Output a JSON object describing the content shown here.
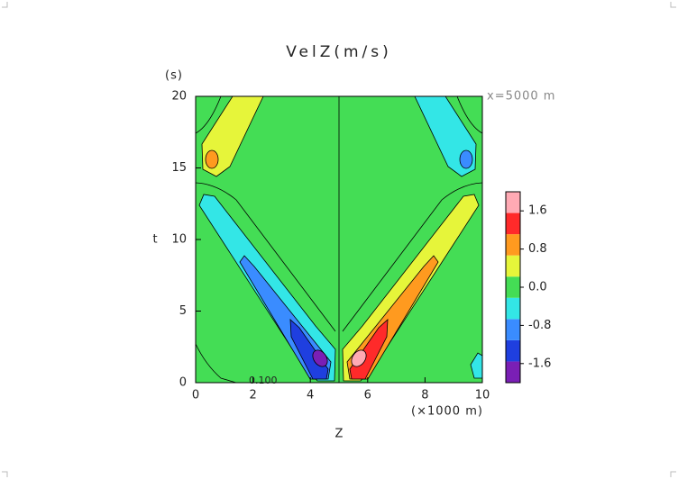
{
  "chart_data": {
    "type": "contour",
    "title": "VelZ(m/s)",
    "x_label": "Z",
    "x_unit": "(×1000 m)",
    "y_label": "t",
    "y_unit": "(s)",
    "annotation": "x=5000 m",
    "contour_label": "0.100",
    "xlim": [
      0,
      10
    ],
    "xticks": [
      0,
      2,
      4,
      6,
      8,
      10
    ],
    "ylim": [
      0,
      20
    ],
    "yticks": [
      0,
      5,
      10,
      15,
      20
    ],
    "colorbar": {
      "clim": [
        -2.0,
        2.0
      ],
      "ticks": [
        -1.6,
        -0.8,
        {
          "value": 0,
          "label": "0.0"
        },
        0.8,
        1.6
      ],
      "colors": [
        "#7a1fb5",
        "#1f3fdf",
        "#3a8cff",
        "#33e6e6",
        "#44dd55",
        "#e6f53a",
        "#ff9a1f",
        "#ff2a2a",
        "#ffaab4"
      ]
    }
  }
}
